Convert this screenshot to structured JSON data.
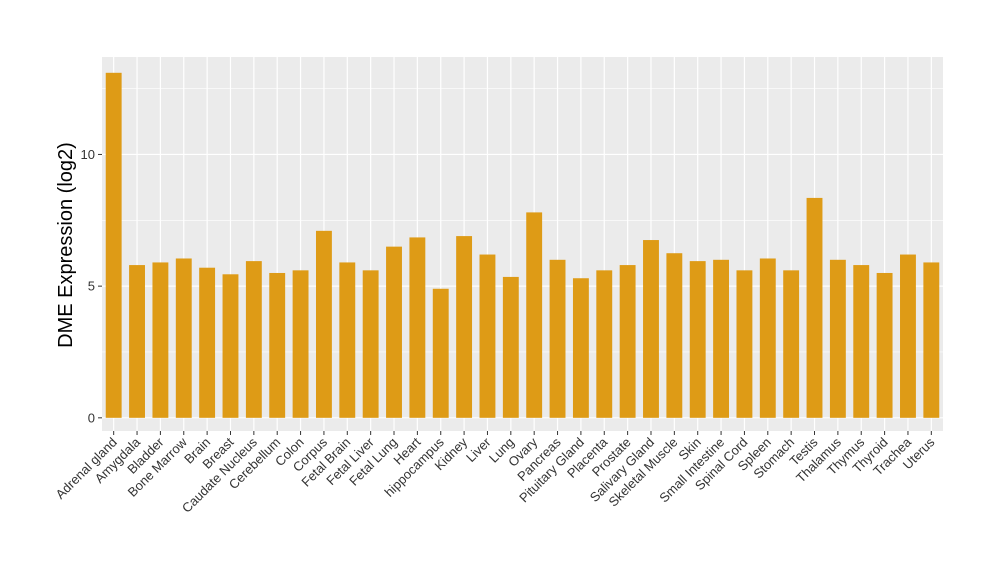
{
  "chart_data": {
    "type": "bar",
    "title": "",
    "xlabel": "",
    "ylabel": "DME Expression (log2)",
    "ylim": [
      -0.5,
      13.7
    ],
    "yticks": [
      0,
      5,
      10
    ],
    "grid": true,
    "legend": "none",
    "bar_color": "#DE9B16",
    "panel_color": "#EBEBEB",
    "grid_color": "#FFFFFF",
    "categories": [
      "Adrenal gland",
      "Amygdala",
      "Bladder",
      "Bone Marrow",
      "Brain",
      "Breast",
      "Caudate Nucleus",
      "Cerebellum",
      "Colon",
      "Corpus",
      "Fetal Brain",
      "Fetal Liver",
      "Fetal Lung",
      "Heart",
      "hippocampus",
      "Kidney",
      "Liver",
      "Lung",
      "Ovary",
      "Pancreas",
      "Pituitary Gland",
      "Placenta",
      "Prostate",
      "Salivary Gland",
      "Skeletal Muscle",
      "Skin",
      "Small Intestine",
      "Spinal Cord",
      "Spleen",
      "Stomach",
      "Testis",
      "Thalamus",
      "Thymus",
      "Thyroid",
      "Trachea",
      "Uterus"
    ],
    "values": [
      13.1,
      5.8,
      5.9,
      6.05,
      5.7,
      5.45,
      5.95,
      5.5,
      5.6,
      7.1,
      5.9,
      5.6,
      6.5,
      6.85,
      4.9,
      6.9,
      6.2,
      5.35,
      7.8,
      6.0,
      5.3,
      5.6,
      5.8,
      6.75,
      6.25,
      5.95,
      6.0,
      5.6,
      6.05,
      5.6,
      8.35,
      6.0,
      5.8,
      5.5,
      6.2,
      5.9
    ]
  }
}
